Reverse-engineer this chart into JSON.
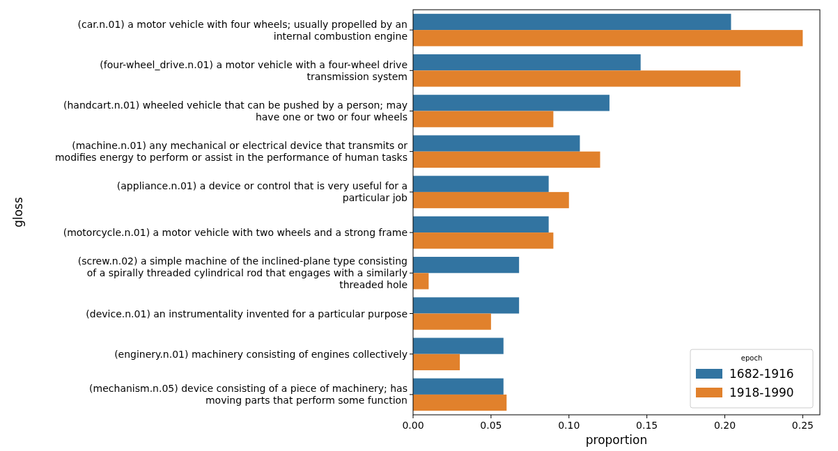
{
  "chart_data": {
    "type": "bar",
    "orientation": "horizontal",
    "xlabel": "proportion",
    "ylabel": "gloss",
    "legend_title": "epoch",
    "legend": "bottom right",
    "grid": false,
    "categories": [
      "(car.n.01) a motor vehicle with four wheels; usually propelled by an\ninternal combustion engine",
      "(four-wheel_drive.n.01) a motor vehicle with a four-wheel drive\ntransmission system",
      "(handcart.n.01) wheeled vehicle that can be pushed by a person; may\nhave one or two or four wheels",
      "(machine.n.01) any mechanical or electrical device that transmits or\nmodifies energy to perform or assist in the performance of human tasks",
      "(appliance.n.01) a device or control that is very useful for a\nparticular job",
      "(motorcycle.n.01) a motor vehicle with two wheels and a strong frame",
      "(screw.n.02) a simple machine of the inclined-plane type consisting\nof a spirally threaded cylindrical rod that engages with a similarly\nthreaded hole",
      "(device.n.01) an instrumentality invented for a particular purpose",
      "(enginery.n.01) machinery consisting of engines collectively",
      "(mechanism.n.05) device consisting of a piece of machinery; has\nmoving parts that perform some function"
    ],
    "series": [
      {
        "name": "1682-1916",
        "color": "#3274a1",
        "values": [
          0.204,
          0.146,
          0.126,
          0.107,
          0.087,
          0.087,
          0.068,
          0.068,
          0.058,
          0.058
        ]
      },
      {
        "name": "1918-1990",
        "color": "#e1812c",
        "values": [
          0.25,
          0.21,
          0.09,
          0.12,
          0.1,
          0.09,
          0.01,
          0.05,
          0.03,
          0.06
        ]
      }
    ],
    "xlim": [
      0,
      0.261
    ],
    "xticks": [
      {
        "value": 0,
        "label": "0.00"
      },
      {
        "value": 0.05,
        "label": "0.05"
      },
      {
        "value": 0.1,
        "label": "0.10"
      },
      {
        "value": 0.15,
        "label": "0.15"
      },
      {
        "value": 0.2,
        "label": "0.20"
      },
      {
        "value": 0.25,
        "label": "0.25"
      }
    ]
  }
}
